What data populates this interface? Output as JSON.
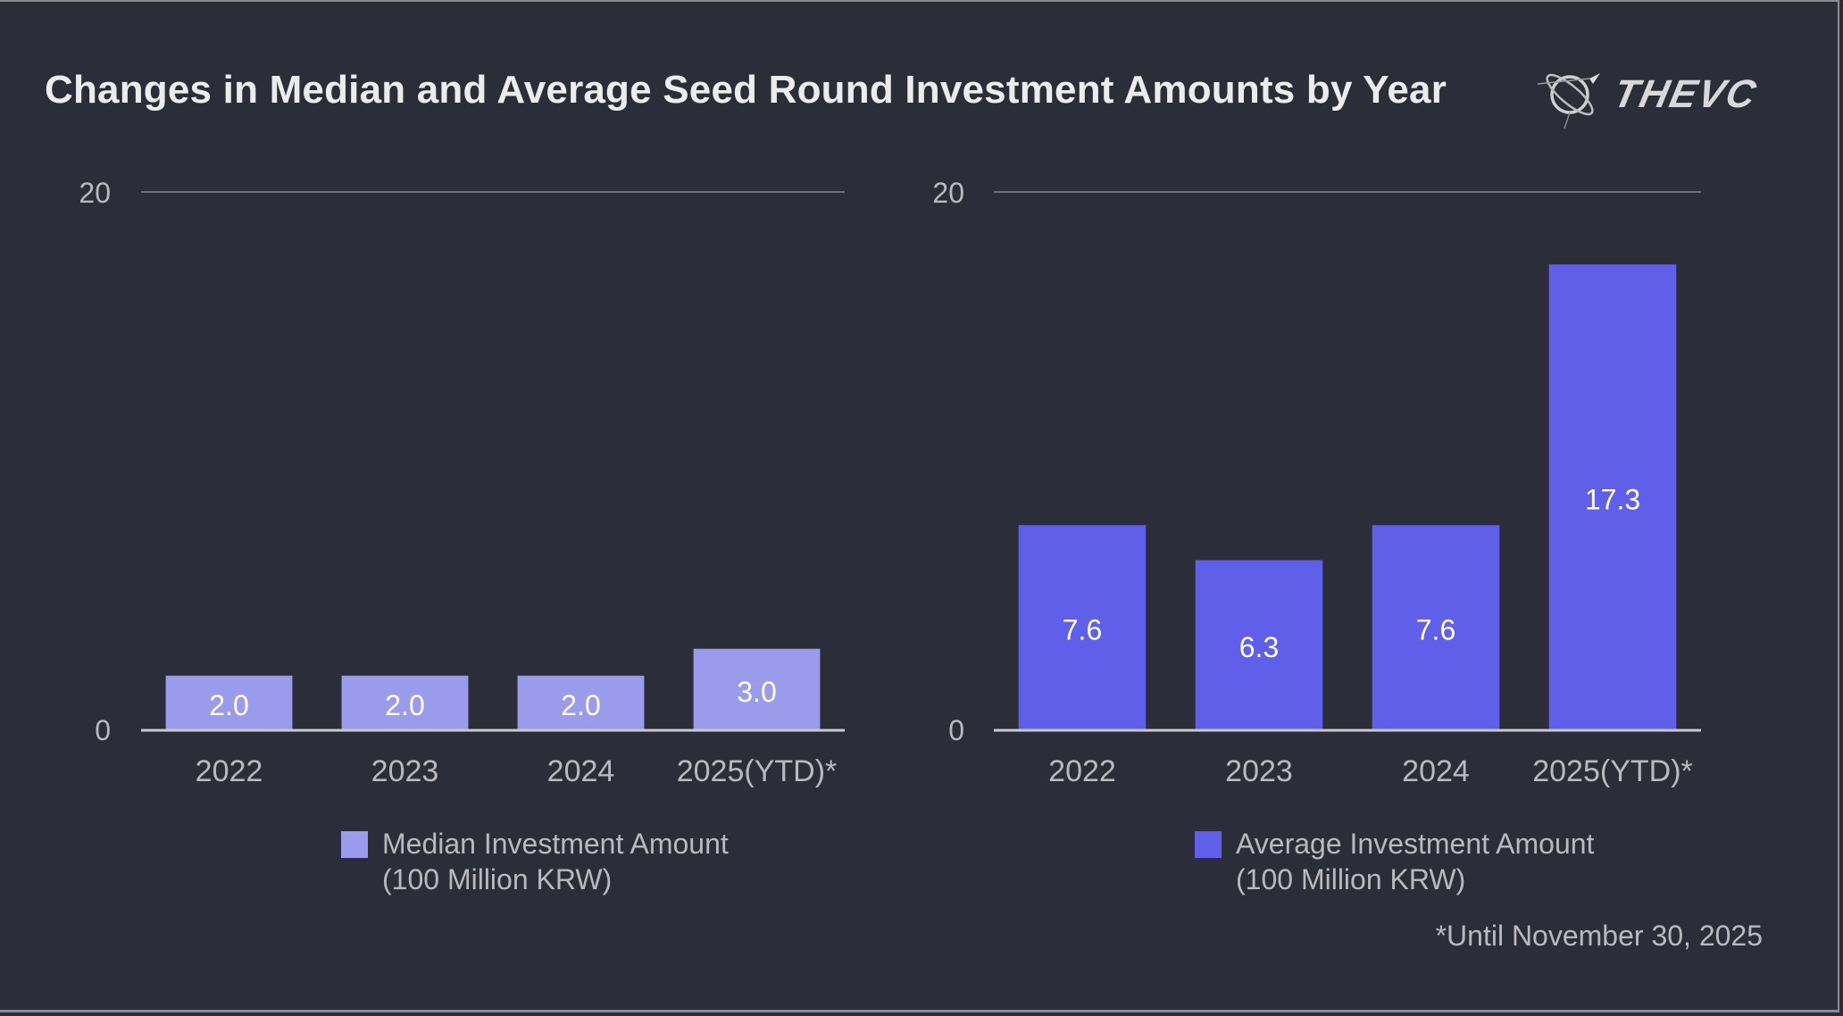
{
  "title": "Changes in Median and Average Seed Round Investment Amounts by Year",
  "logo": {
    "text": "THEVC",
    "icon": "orbit-logo-icon"
  },
  "footnote": "*Until November 30, 2025",
  "colors": {
    "background": "#2b2d38",
    "median_bar": "#9b9bec",
    "average_bar": "#5f5fea",
    "gridline": "#6e7079",
    "baseline": "#c9c9cf",
    "tick_text": "#b9b9bf",
    "label_text": "#ffffff"
  },
  "chart_data": [
    {
      "type": "bar",
      "title": "",
      "categories": [
        "2022",
        "2023",
        "2024",
        "2025(YTD)*"
      ],
      "series": [
        {
          "name": "Median Investment Amount (100 Million KRW)",
          "values": [
            2.0,
            2.0,
            2.0,
            3.0
          ],
          "color": "#9b9bec"
        }
      ],
      "value_labels": [
        "2.0",
        "2.0",
        "2.0",
        "3.0"
      ],
      "xlabel": "",
      "ylabel": "",
      "ylim": [
        0,
        20
      ],
      "yticks": [
        "0",
        "20"
      ],
      "grid": true,
      "legend": {
        "position": "bottom",
        "lines": [
          "Median Investment Amount",
          "(100 Million KRW)"
        ]
      }
    },
    {
      "type": "bar",
      "title": "",
      "categories": [
        "2022",
        "2023",
        "2024",
        "2025(YTD)*"
      ],
      "series": [
        {
          "name": "Average Investment Amount (100 Million KRW)",
          "values": [
            7.6,
            6.3,
            7.6,
            17.3
          ],
          "color": "#5f5fea"
        }
      ],
      "value_labels": [
        "7.6",
        "6.3",
        "7.6",
        "17.3"
      ],
      "xlabel": "",
      "ylabel": "",
      "ylim": [
        0,
        20
      ],
      "yticks": [
        "0",
        "20"
      ],
      "grid": true,
      "legend": {
        "position": "bottom",
        "lines": [
          "Average Investment Amount",
          "(100 Million KRW)"
        ]
      }
    }
  ]
}
